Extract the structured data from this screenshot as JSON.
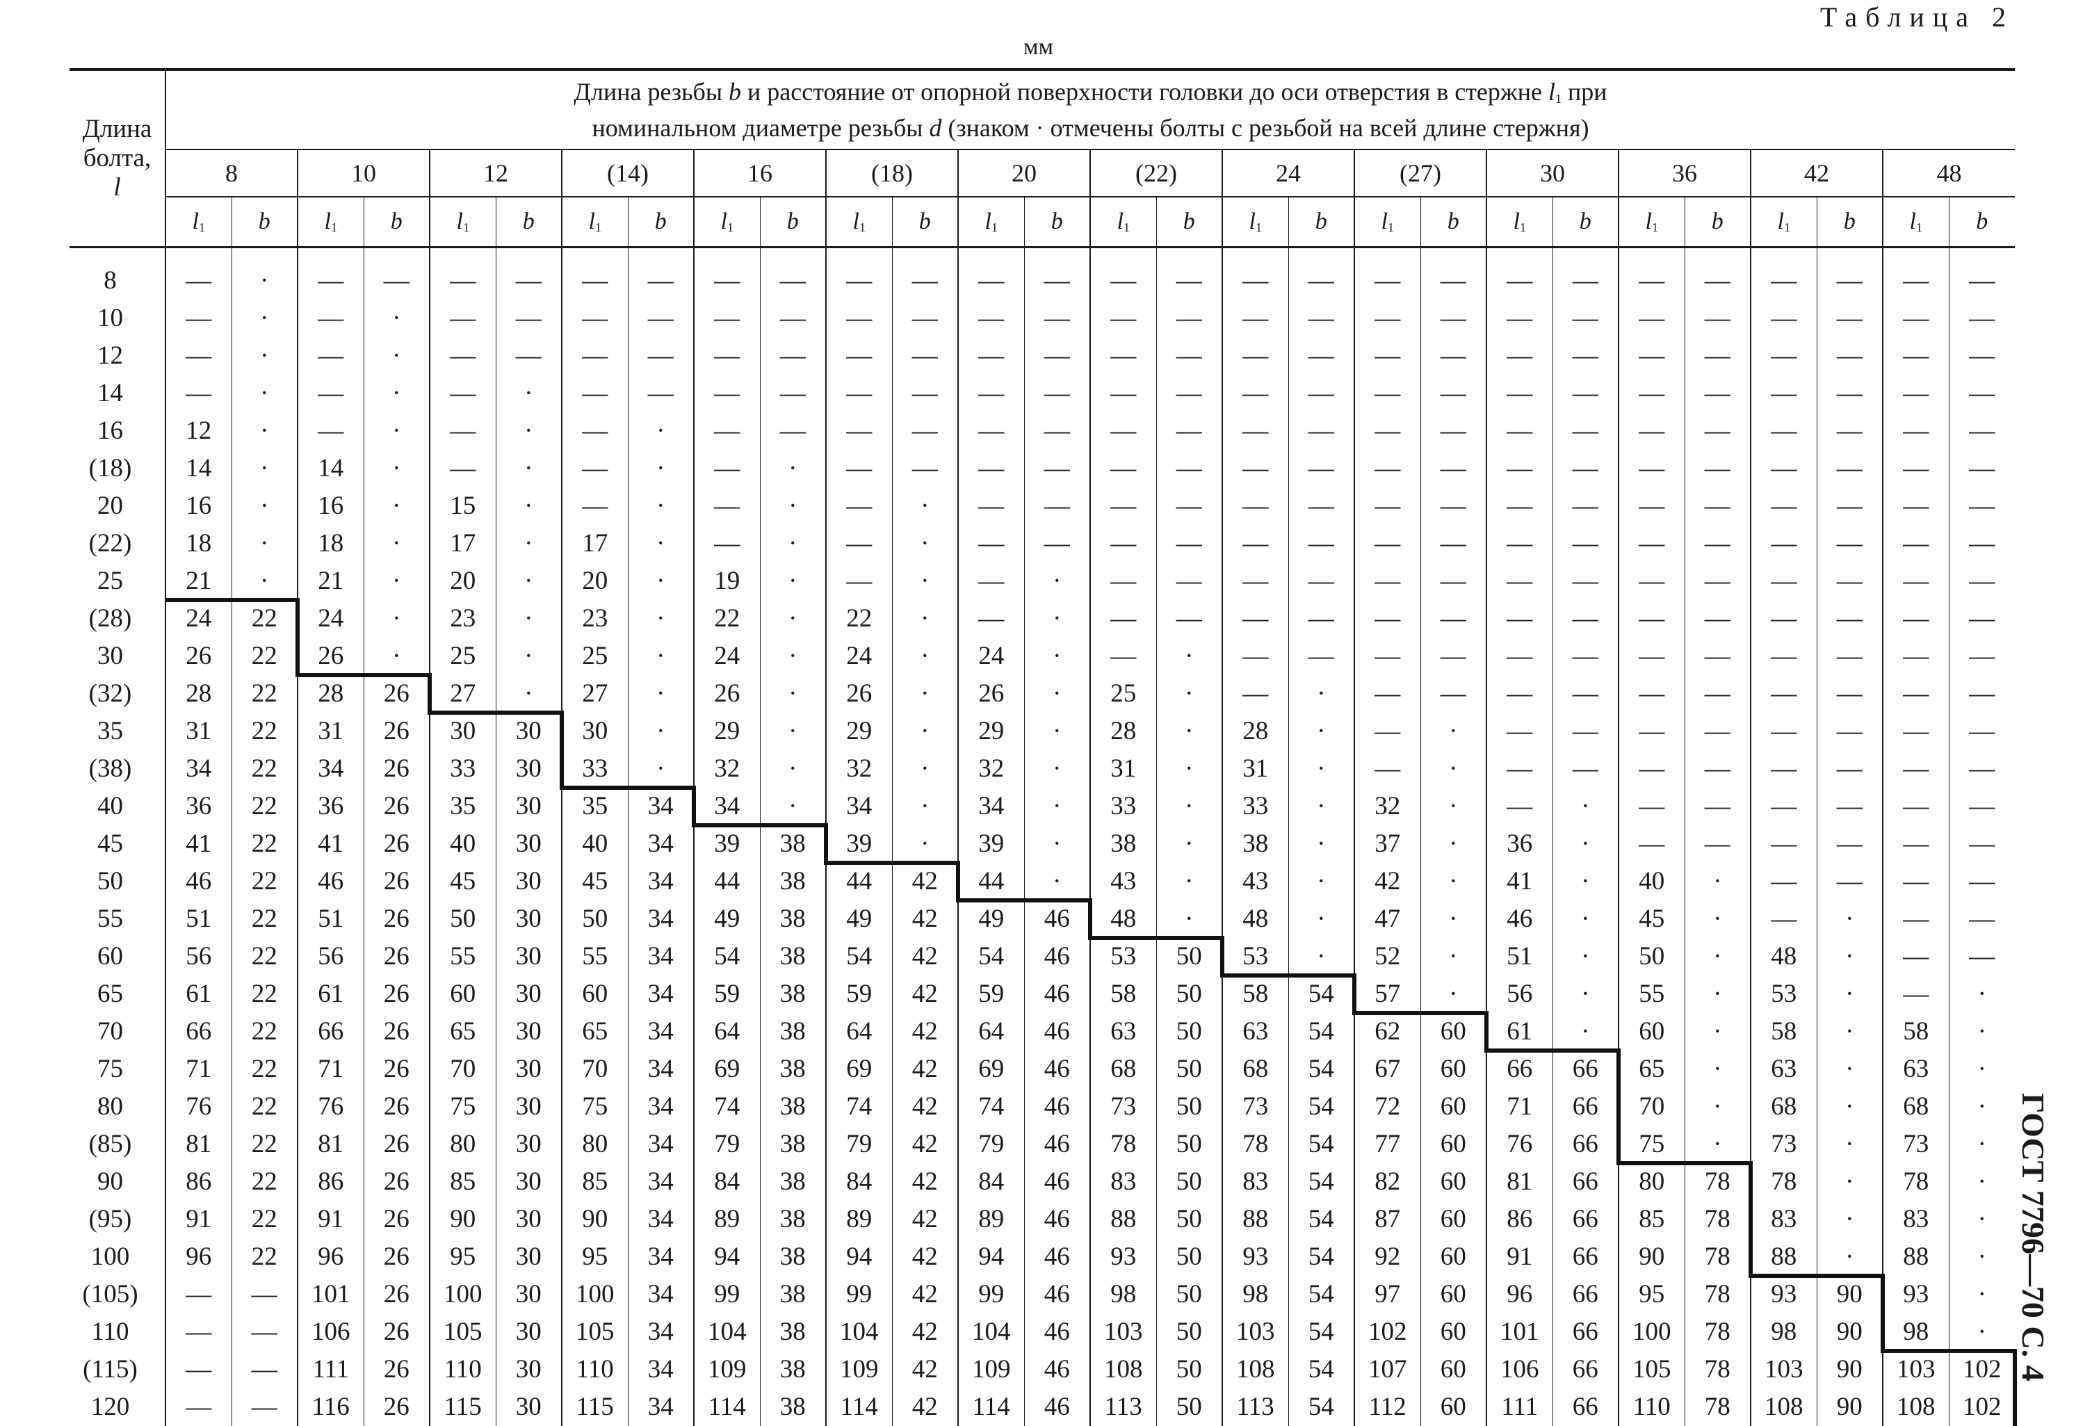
{
  "doc": {
    "table_title": "Таблица 2",
    "units": "мм",
    "side_label": "ГОСТ 7796—70 С. 4"
  },
  "header": {
    "length_col": {
      "line1": "Длина",
      "line2": "болта,",
      "symbol": "l"
    },
    "span_line1_a": "Длина резьбы ",
    "span_line1_b": "b",
    "span_line1_c": " и расстояние от опорной поверхности головки до оси отверстия в стержне ",
    "span_line1_d": "l",
    "span_line1_e": "1",
    "span_line1_f": " при",
    "span_line2_a": "номинальном диаметре резьбы ",
    "span_line2_b": "d",
    "span_line2_c": "  (знаком · отмечены болты с резьбой на всей длине стержня)",
    "sub_l": "l",
    "sub_1": "1",
    "sub_b": "b"
  },
  "diameters": [
    "8",
    "10",
    "12",
    "(14)",
    "16",
    "(18)",
    "20",
    "(22)",
    "24",
    "(27)",
    "30",
    "36",
    "42",
    "48"
  ],
  "lengths": [
    "8",
    "10",
    "12",
    "14",
    "16",
    "(18)",
    "20",
    "(22)",
    "25",
    "(28)",
    "30",
    "(32)",
    "35",
    "(38)",
    "40",
    "45",
    "50",
    "55",
    "60",
    "65",
    "70",
    "75",
    "80",
    "(85)",
    "90",
    "(95)",
    "100",
    "(105)",
    "110",
    "(115)",
    "120"
  ],
  "rows": [
    [
      "—",
      "·",
      "—",
      "—",
      "—",
      "—",
      "—",
      "—",
      "—",
      "—",
      "—",
      "—",
      "—",
      "—",
      "—",
      "—",
      "—",
      "—",
      "—",
      "—",
      "—",
      "—",
      "—",
      "—",
      "—",
      "—",
      "—",
      "—"
    ],
    [
      "—",
      "·",
      "—",
      "·",
      "—",
      "—",
      "—",
      "—",
      "—",
      "—",
      "—",
      "—",
      "—",
      "—",
      "—",
      "—",
      "—",
      "—",
      "—",
      "—",
      "—",
      "—",
      "—",
      "—",
      "—",
      "—",
      "—",
      "—"
    ],
    [
      "—",
      "·",
      "—",
      "·",
      "—",
      "—",
      "—",
      "—",
      "—",
      "—",
      "—",
      "—",
      "—",
      "—",
      "—",
      "—",
      "—",
      "—",
      "—",
      "—",
      "—",
      "—",
      "—",
      "—",
      "—",
      "—",
      "—",
      "—"
    ],
    [
      "—",
      "·",
      "—",
      "·",
      "—",
      "·",
      "—",
      "—",
      "—",
      "—",
      "—",
      "—",
      "—",
      "—",
      "—",
      "—",
      "—",
      "—",
      "—",
      "—",
      "—",
      "—",
      "—",
      "—",
      "—",
      "—",
      "—",
      "—"
    ],
    [
      "12",
      "·",
      "—",
      "·",
      "—",
      "·",
      "—",
      "·",
      "—",
      "—",
      "—",
      "—",
      "—",
      "—",
      "—",
      "—",
      "—",
      "—",
      "—",
      "—",
      "—",
      "—",
      "—",
      "—",
      "—",
      "—",
      "—",
      "—"
    ],
    [
      "14",
      "·",
      "14",
      "·",
      "—",
      "·",
      "—",
      "·",
      "—",
      "·",
      "—",
      "—",
      "—",
      "—",
      "—",
      "—",
      "—",
      "—",
      "—",
      "—",
      "—",
      "—",
      "—",
      "—",
      "—",
      "—",
      "—",
      "—"
    ],
    [
      "16",
      "·",
      "16",
      "·",
      "15",
      "·",
      "—",
      "·",
      "—",
      "·",
      "—",
      "·",
      "—",
      "—",
      "—",
      "—",
      "—",
      "—",
      "—",
      "—",
      "—",
      "—",
      "—",
      "—",
      "—",
      "—",
      "—",
      "—"
    ],
    [
      "18",
      "·",
      "18",
      "·",
      "17",
      "·",
      "17",
      "·",
      "—",
      "·",
      "—",
      "·",
      "—",
      "—",
      "—",
      "—",
      "—",
      "—",
      "—",
      "—",
      "—",
      "—",
      "—",
      "—",
      "—",
      "—",
      "—",
      "—"
    ],
    [
      "21",
      "·",
      "21",
      "·",
      "20",
      "·",
      "20",
      "·",
      "19",
      "·",
      "—",
      "·",
      "—",
      "·",
      "—",
      "—",
      "—",
      "—",
      "—",
      "—",
      "—",
      "—",
      "—",
      "—",
      "—",
      "—",
      "—",
      "—"
    ],
    [
      "24",
      "22",
      "24",
      "·",
      "23",
      "·",
      "23",
      "·",
      "22",
      "·",
      "22",
      "·",
      "—",
      "·",
      "—",
      "—",
      "—",
      "—",
      "—",
      "—",
      "—",
      "—",
      "—",
      "—",
      "—",
      "—",
      "—",
      "—"
    ],
    [
      "26",
      "22",
      "26",
      "·",
      "25",
      "·",
      "25",
      "·",
      "24",
      "·",
      "24",
      "·",
      "24",
      "·",
      "—",
      "·",
      "—",
      "—",
      "—",
      "—",
      "—",
      "—",
      "—",
      "—",
      "—",
      "—",
      "—",
      "—"
    ],
    [
      "28",
      "22",
      "28",
      "26",
      "27",
      "·",
      "27",
      "·",
      "26",
      "·",
      "26",
      "·",
      "26",
      "·",
      "25",
      "·",
      "—",
      "·",
      "—",
      "—",
      "—",
      "—",
      "—",
      "—",
      "—",
      "—",
      "—",
      "—"
    ],
    [
      "31",
      "22",
      "31",
      "26",
      "30",
      "30",
      "30",
      "·",
      "29",
      "·",
      "29",
      "·",
      "29",
      "·",
      "28",
      "·",
      "28",
      "·",
      "—",
      "·",
      "—",
      "—",
      "—",
      "—",
      "—",
      "—",
      "—",
      "—"
    ],
    [
      "34",
      "22",
      "34",
      "26",
      "33",
      "30",
      "33",
      "·",
      "32",
      "·",
      "32",
      "·",
      "32",
      "·",
      "31",
      "·",
      "31",
      "·",
      "—",
      "·",
      "—",
      "—",
      "—",
      "—",
      "—",
      "—",
      "—",
      "—"
    ],
    [
      "36",
      "22",
      "36",
      "26",
      "35",
      "30",
      "35",
      "34",
      "34",
      "·",
      "34",
      "·",
      "34",
      "·",
      "33",
      "·",
      "33",
      "·",
      "32",
      "·",
      "—",
      "·",
      "—",
      "—",
      "—",
      "—",
      "—",
      "—"
    ],
    [
      "41",
      "22",
      "41",
      "26",
      "40",
      "30",
      "40",
      "34",
      "39",
      "38",
      "39",
      "·",
      "39",
      "·",
      "38",
      "·",
      "38",
      "·",
      "37",
      "·",
      "36",
      "·",
      "—",
      "—",
      "—",
      "—",
      "—",
      "—"
    ],
    [
      "46",
      "22",
      "46",
      "26",
      "45",
      "30",
      "45",
      "34",
      "44",
      "38",
      "44",
      "42",
      "44",
      "·",
      "43",
      "·",
      "43",
      "·",
      "42",
      "·",
      "41",
      "·",
      "40",
      "·",
      "—",
      "—",
      "—",
      "—"
    ],
    [
      "51",
      "22",
      "51",
      "26",
      "50",
      "30",
      "50",
      "34",
      "49",
      "38",
      "49",
      "42",
      "49",
      "46",
      "48",
      "·",
      "48",
      "·",
      "47",
      "·",
      "46",
      "·",
      "45",
      "·",
      "—",
      "·",
      "—",
      "—"
    ],
    [
      "56",
      "22",
      "56",
      "26",
      "55",
      "30",
      "55",
      "34",
      "54",
      "38",
      "54",
      "42",
      "54",
      "46",
      "53",
      "50",
      "53",
      "·",
      "52",
      "·",
      "51",
      "·",
      "50",
      "·",
      "48",
      "·",
      "—",
      "—"
    ],
    [
      "61",
      "22",
      "61",
      "26",
      "60",
      "30",
      "60",
      "34",
      "59",
      "38",
      "59",
      "42",
      "59",
      "46",
      "58",
      "50",
      "58",
      "54",
      "57",
      "·",
      "56",
      "·",
      "55",
      "·",
      "53",
      "·",
      "—",
      "·"
    ],
    [
      "66",
      "22",
      "66",
      "26",
      "65",
      "30",
      "65",
      "34",
      "64",
      "38",
      "64",
      "42",
      "64",
      "46",
      "63",
      "50",
      "63",
      "54",
      "62",
      "60",
      "61",
      "·",
      "60",
      "·",
      "58",
      "·",
      "58",
      "·"
    ],
    [
      "71",
      "22",
      "71",
      "26",
      "70",
      "30",
      "70",
      "34",
      "69",
      "38",
      "69",
      "42",
      "69",
      "46",
      "68",
      "50",
      "68",
      "54",
      "67",
      "60",
      "66",
      "66",
      "65",
      "·",
      "63",
      "·",
      "63",
      "·"
    ],
    [
      "76",
      "22",
      "76",
      "26",
      "75",
      "30",
      "75",
      "34",
      "74",
      "38",
      "74",
      "42",
      "74",
      "46",
      "73",
      "50",
      "73",
      "54",
      "72",
      "60",
      "71",
      "66",
      "70",
      "·",
      "68",
      "·",
      "68",
      "·"
    ],
    [
      "81",
      "22",
      "81",
      "26",
      "80",
      "30",
      "80",
      "34",
      "79",
      "38",
      "79",
      "42",
      "79",
      "46",
      "78",
      "50",
      "78",
      "54",
      "77",
      "60",
      "76",
      "66",
      "75",
      "·",
      "73",
      "·",
      "73",
      "·"
    ],
    [
      "86",
      "22",
      "86",
      "26",
      "85",
      "30",
      "85",
      "34",
      "84",
      "38",
      "84",
      "42",
      "84",
      "46",
      "83",
      "50",
      "83",
      "54",
      "82",
      "60",
      "81",
      "66",
      "80",
      "78",
      "78",
      "·",
      "78",
      "·"
    ],
    [
      "91",
      "22",
      "91",
      "26",
      "90",
      "30",
      "90",
      "34",
      "89",
      "38",
      "89",
      "42",
      "89",
      "46",
      "88",
      "50",
      "88",
      "54",
      "87",
      "60",
      "86",
      "66",
      "85",
      "78",
      "83",
      "·",
      "83",
      "·"
    ],
    [
      "96",
      "22",
      "96",
      "26",
      "95",
      "30",
      "95",
      "34",
      "94",
      "38",
      "94",
      "42",
      "94",
      "46",
      "93",
      "50",
      "93",
      "54",
      "92",
      "60",
      "91",
      "66",
      "90",
      "78",
      "88",
      "·",
      "88",
      "·"
    ],
    [
      "—",
      "—",
      "101",
      "26",
      "100",
      "30",
      "100",
      "34",
      "99",
      "38",
      "99",
      "42",
      "99",
      "46",
      "98",
      "50",
      "98",
      "54",
      "97",
      "60",
      "96",
      "66",
      "95",
      "78",
      "93",
      "90",
      "93",
      "·"
    ],
    [
      "—",
      "—",
      "106",
      "26",
      "105",
      "30",
      "105",
      "34",
      "104",
      "38",
      "104",
      "42",
      "104",
      "46",
      "103",
      "50",
      "103",
      "54",
      "102",
      "60",
      "101",
      "66",
      "100",
      "78",
      "98",
      "90",
      "98",
      "·"
    ],
    [
      "—",
      "—",
      "111",
      "26",
      "110",
      "30",
      "110",
      "34",
      "109",
      "38",
      "109",
      "42",
      "109",
      "46",
      "108",
      "50",
      "108",
      "54",
      "107",
      "60",
      "106",
      "66",
      "105",
      "78",
      "103",
      "90",
      "103",
      "102"
    ],
    [
      "—",
      "—",
      "116",
      "26",
      "115",
      "30",
      "115",
      "34",
      "114",
      "38",
      "114",
      "42",
      "114",
      "46",
      "113",
      "50",
      "113",
      "54",
      "112",
      "60",
      "111",
      "66",
      "110",
      "78",
      "108",
      "90",
      "108",
      "102"
    ]
  ]
}
